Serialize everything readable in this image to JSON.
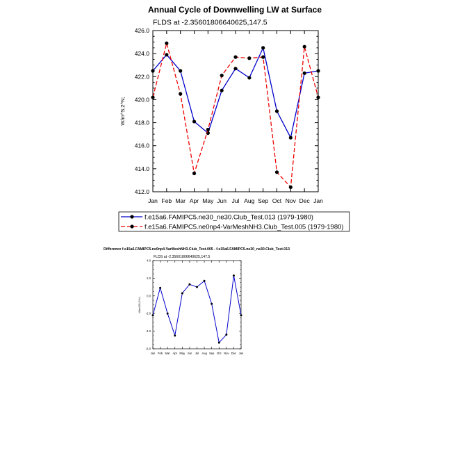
{
  "chart_data": [
    {
      "type": "line",
      "title": "Annual Cycle of Downwelling LW at Surface",
      "subtitle": "FLDS at -2.35601806640625,147.5",
      "ylabel": "W/m^S;2^N;",
      "xlabel": "",
      "categories": [
        "Jan",
        "Feb",
        "Mar",
        "Apr",
        "May",
        "Jun",
        "Jul",
        "Aug",
        "Sep",
        "Oct",
        "Nov",
        "Dec",
        "Jan"
      ],
      "ylim": [
        412,
        426
      ],
      "yticks": [
        412.0,
        414.0,
        416.0,
        418.0,
        420.0,
        422.0,
        424.0,
        426.0
      ],
      "ytick_labels": [
        "412.0",
        "414.0",
        "416.0",
        "418.0",
        "420.0",
        "422.0",
        "424.0",
        "426.0"
      ],
      "grid": false,
      "legend_position": "bottom",
      "series": [
        {
          "name": "f.e15a6.FAMIPC5.ne30_ne30.Club_Test.013 (1979-1980)",
          "color": "#0000cc",
          "dash": "solid",
          "values": [
            422.5,
            423.9,
            422.5,
            418.1,
            417.1,
            420.8,
            422.7,
            421.9,
            424.5,
            419.0,
            416.7,
            422.3,
            422.5
          ]
        },
        {
          "name": "f.e15a6.FAMIPC5.ne0np4-VarMeshNH3.Club_Test.005 (1979-1980)",
          "color": "#ee0000",
          "dash": "dashed",
          "values": [
            420.2,
            424.9,
            420.5,
            413.6,
            417.4,
            422.1,
            423.7,
            423.6,
            423.7,
            413.7,
            412.4,
            424.6,
            420.2
          ]
        }
      ]
    },
    {
      "type": "line",
      "title": "Difference f.e15a6.FAMIPC5.ne0np4-VarMeshNH3.Club_Test.005 - f.e15a6.FAMIPC5.ne30_ne30.Club_Test.013",
      "subtitle": "FLDS at -2.35601806640625,147.5",
      "ylabel": "W/m2/S;2^N;",
      "xlabel": "",
      "categories": [
        "Jan",
        "Feb",
        "Mar",
        "Apr",
        "May",
        "Jun",
        "Jul",
        "Aug",
        "Sep",
        "Oct",
        "Nov",
        "Dec",
        "Jan"
      ],
      "ylim": [
        -6,
        4
      ],
      "yticks": [
        -6.0,
        -4.0,
        -2.0,
        0.0,
        2.0,
        4.0
      ],
      "ytick_labels": [
        "-6.0",
        "-4.0",
        "-2.0",
        "0.0",
        "2.0",
        "4.0"
      ],
      "grid": false,
      "series": [
        {
          "color": "#0000cc",
          "dash": "solid",
          "values": [
            -2.2,
            0.9,
            -2.0,
            -4.5,
            0.3,
            1.3,
            1.0,
            1.7,
            -0.9,
            -5.3,
            -4.4,
            2.3,
            -2.2
          ]
        }
      ]
    }
  ]
}
